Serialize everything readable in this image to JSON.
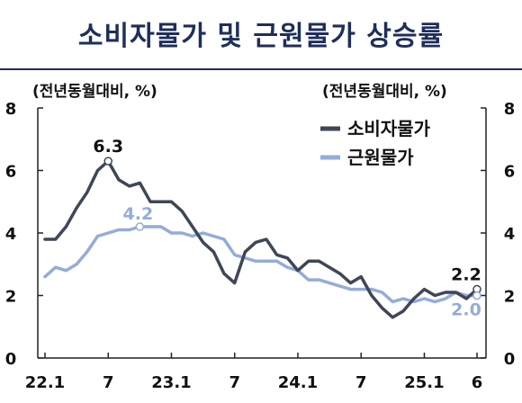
{
  "title": "소비자물가 및 근원물가 상승률",
  "colors": {
    "title": "#1f2e5a",
    "cpi": "#3d4756",
    "core": "#94acd8",
    "axis": "#222222"
  },
  "chart_data": {
    "type": "line",
    "title": "소비자물가 및 근원물가 상승률",
    "ylabel_left": "(전년동월대비, %)",
    "ylabel_right": "(전년동월대비, %)",
    "ylim": [
      0,
      8
    ],
    "yticks": [
      "0",
      "2",
      "4",
      "6",
      "8"
    ],
    "x": [
      "2022-01",
      "2022-02",
      "2022-03",
      "2022-04",
      "2022-05",
      "2022-06",
      "2022-07",
      "2022-08",
      "2022-09",
      "2022-10",
      "2022-11",
      "2022-12",
      "2023-01",
      "2023-02",
      "2023-03",
      "2023-04",
      "2023-05",
      "2023-06",
      "2023-07",
      "2023-08",
      "2023-09",
      "2023-10",
      "2023-11",
      "2023-12",
      "2024-01",
      "2024-02",
      "2024-03",
      "2024-04",
      "2024-05",
      "2024-06",
      "2024-07",
      "2024-08",
      "2024-09",
      "2024-10",
      "2024-11",
      "2024-12",
      "2025-01",
      "2025-02",
      "2025-03",
      "2025-04",
      "2025-05",
      "2025-06"
    ],
    "xtick_labels": [
      {
        "index": 0,
        "label": "22.1"
      },
      {
        "index": 6,
        "label": "7"
      },
      {
        "index": 12,
        "label": "23.1"
      },
      {
        "index": 18,
        "label": "7"
      },
      {
        "index": 24,
        "label": "24.1"
      },
      {
        "index": 30,
        "label": "7"
      },
      {
        "index": 36,
        "label": "25.1"
      },
      {
        "index": 41,
        "label": "6"
      }
    ],
    "grid": false,
    "legend_position": "top-right",
    "series": [
      {
        "name": "소비자물가",
        "values": [
          3.8,
          3.8,
          4.2,
          4.8,
          5.3,
          6.0,
          6.3,
          5.7,
          5.5,
          5.6,
          5.0,
          5.0,
          5.0,
          4.7,
          4.2,
          3.7,
          3.4,
          2.7,
          2.4,
          3.4,
          3.7,
          3.8,
          3.3,
          3.2,
          2.8,
          3.1,
          3.1,
          2.9,
          2.7,
          2.4,
          2.6,
          2.0,
          1.6,
          1.3,
          1.5,
          1.9,
          2.2,
          2.0,
          2.1,
          2.1,
          1.9,
          2.2
        ]
      },
      {
        "name": "근원물가",
        "values": [
          2.6,
          2.9,
          2.8,
          3.0,
          3.4,
          3.9,
          4.0,
          4.1,
          4.1,
          4.2,
          4.2,
          4.2,
          4.0,
          4.0,
          3.9,
          4.0,
          3.9,
          3.8,
          3.3,
          3.2,
          3.1,
          3.1,
          3.1,
          2.9,
          2.8,
          2.5,
          2.5,
          2.4,
          2.3,
          2.2,
          2.2,
          2.2,
          2.1,
          1.8,
          1.9,
          1.8,
          1.9,
          1.8,
          1.9,
          2.1,
          2.0,
          2.0
        ]
      }
    ],
    "annotations": [
      {
        "series": 0,
        "index": 6,
        "label": "6.3",
        "placement": "above"
      },
      {
        "series": 1,
        "index": 9,
        "label": "4.2",
        "placement": "above-left"
      },
      {
        "series": 0,
        "index": 41,
        "label": "2.2",
        "placement": "above"
      },
      {
        "series": 1,
        "index": 41,
        "label": "2.0",
        "placement": "below"
      }
    ]
  }
}
